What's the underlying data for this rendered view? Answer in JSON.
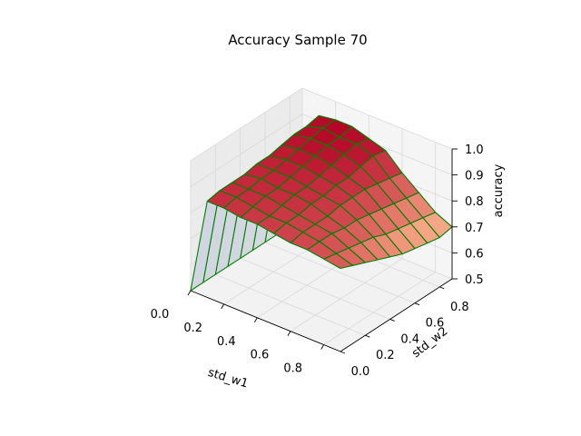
{
  "chart_data": {
    "type": "surface3d",
    "title": "Accuracy Sample 70",
    "xlabel": "std_w1",
    "ylabel": "std_w2",
    "zlabel": "accuracy",
    "xlim": [
      0.0,
      0.9
    ],
    "ylim": [
      0.0,
      0.9
    ],
    "zlim": [
      0.5,
      1.0
    ],
    "x_ticks": [
      "0.0",
      "0.2",
      "0.4",
      "0.6",
      "0.8"
    ],
    "y_ticks": [
      "0.0",
      "0.2",
      "0.4",
      "0.6",
      "0.8"
    ],
    "z_ticks": [
      "0.5",
      "0.6",
      "0.7",
      "0.8",
      "0.9",
      "1.0"
    ],
    "x_ticks_values": [
      0.0,
      0.2,
      0.4,
      0.6,
      0.8
    ],
    "y_ticks_values": [
      0.0,
      0.2,
      0.4,
      0.6,
      0.8
    ],
    "z_ticks_values": [
      0.5,
      0.6,
      0.7,
      0.8,
      0.9,
      1.0
    ],
    "x": [
      0.0,
      0.1,
      0.2,
      0.3,
      0.4,
      0.5,
      0.6,
      0.7,
      0.8,
      0.9
    ],
    "y": [
      0.0,
      0.1,
      0.2,
      0.3,
      0.4,
      0.5,
      0.6,
      0.7,
      0.8,
      0.9
    ],
    "z": [
      [
        0.1,
        0.1,
        0.1,
        0.1,
        0.1,
        0.1,
        0.1,
        0.1,
        0.1,
        0.1
      ],
      [
        0.87,
        0.88,
        0.88,
        0.88,
        0.89,
        0.89,
        0.9,
        0.91,
        0.91,
        0.92
      ],
      [
        0.87,
        0.88,
        0.88,
        0.89,
        0.89,
        0.9,
        0.91,
        0.92,
        0.93,
        0.93
      ],
      [
        0.86,
        0.87,
        0.88,
        0.88,
        0.89,
        0.9,
        0.91,
        0.92,
        0.92,
        0.93
      ],
      [
        0.86,
        0.86,
        0.87,
        0.88,
        0.88,
        0.89,
        0.9,
        0.91,
        0.92,
        0.91
      ],
      [
        0.85,
        0.86,
        0.86,
        0.87,
        0.87,
        0.88,
        0.88,
        0.89,
        0.9,
        0.89
      ],
      [
        0.84,
        0.85,
        0.85,
        0.85,
        0.86,
        0.86,
        0.86,
        0.85,
        0.84,
        0.83
      ],
      [
        0.84,
        0.84,
        0.84,
        0.83,
        0.83,
        0.82,
        0.81,
        0.8,
        0.79,
        0.78
      ],
      [
        0.83,
        0.82,
        0.81,
        0.8,
        0.79,
        0.77,
        0.76,
        0.75,
        0.74,
        0.73
      ],
      [
        0.82,
        0.8,
        0.78,
        0.76,
        0.74,
        0.72,
        0.71,
        0.7,
        0.69,
        0.7
      ]
    ],
    "colormap": "coolwarm",
    "edge_color": "#008000",
    "grid": true
  }
}
